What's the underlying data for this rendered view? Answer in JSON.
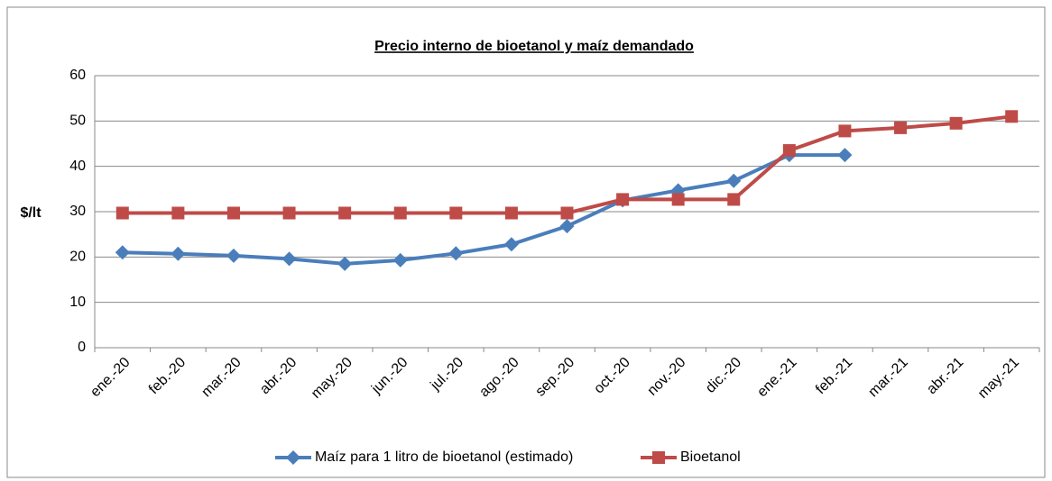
{
  "chart_data": {
    "type": "line",
    "title": "Precio interno de bioetanol y maíz demandado",
    "y_label": "$/lt",
    "categories": [
      "ene.-20",
      "feb.-20",
      "mar.-20",
      "abr.-20",
      "may.-20",
      "jun.-20",
      "jul.-20",
      "ago.-20",
      "sep.-20",
      "oct.-20",
      "nov.-20",
      "dic.-20",
      "ene.-21",
      "feb.-21",
      "mar.-21",
      "abr.-21",
      "may.-21"
    ],
    "series": [
      {
        "name": "Maíz para 1 litro de bioetanol (estimado)",
        "color": "#4a7ebb",
        "values": [
          21,
          20.7,
          20.3,
          19.6,
          18.5,
          19.3,
          20.8,
          22.8,
          26.8,
          32.5,
          34.7,
          36.8,
          42.5,
          42.5,
          null,
          null,
          null
        ]
      },
      {
        "name": "Bioetanol",
        "color": "#be4b48",
        "values": [
          29.7,
          29.7,
          29.7,
          29.7,
          29.7,
          29.7,
          29.7,
          29.7,
          29.7,
          32.7,
          32.7,
          32.7,
          43.5,
          47.8,
          48.5,
          49.5,
          51
        ]
      }
    ],
    "ylim": [
      0,
      60
    ],
    "yticks": [
      0,
      10,
      20,
      30,
      40,
      50,
      60
    ],
    "grid": true,
    "legend": "bottom"
  }
}
